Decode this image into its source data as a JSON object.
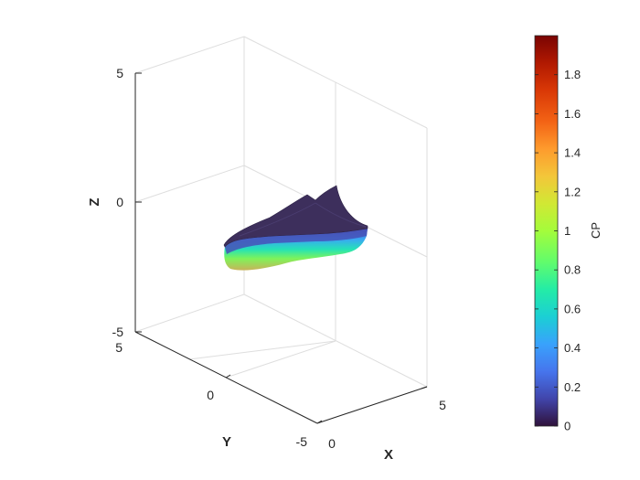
{
  "chart_data": {
    "type": "surface3d",
    "view": "isometric-3d",
    "grid": true,
    "xlabel": "X",
    "ylabel": "Y",
    "zlabel": "Z",
    "xlim": [
      0,
      5
    ],
    "ylim": [
      -5,
      5
    ],
    "zlim": [
      -5,
      5
    ],
    "x_ticks": [
      "0",
      "5"
    ],
    "y_ticks": [
      "-5",
      "0",
      "5"
    ],
    "z_ticks": [
      "-5",
      "0",
      "5"
    ],
    "colorbar": {
      "label": "CP",
      "range": [
        0,
        2
      ],
      "ticks": [
        "0",
        "0.2",
        "0.4",
        "0.6",
        "0.8",
        "1",
        "1.2",
        "1.4",
        "1.6",
        "1.8"
      ],
      "colormap": "turbo"
    },
    "surface": {
      "description": "hull-like shape",
      "top_color": "#3d2f5c"
    }
  }
}
